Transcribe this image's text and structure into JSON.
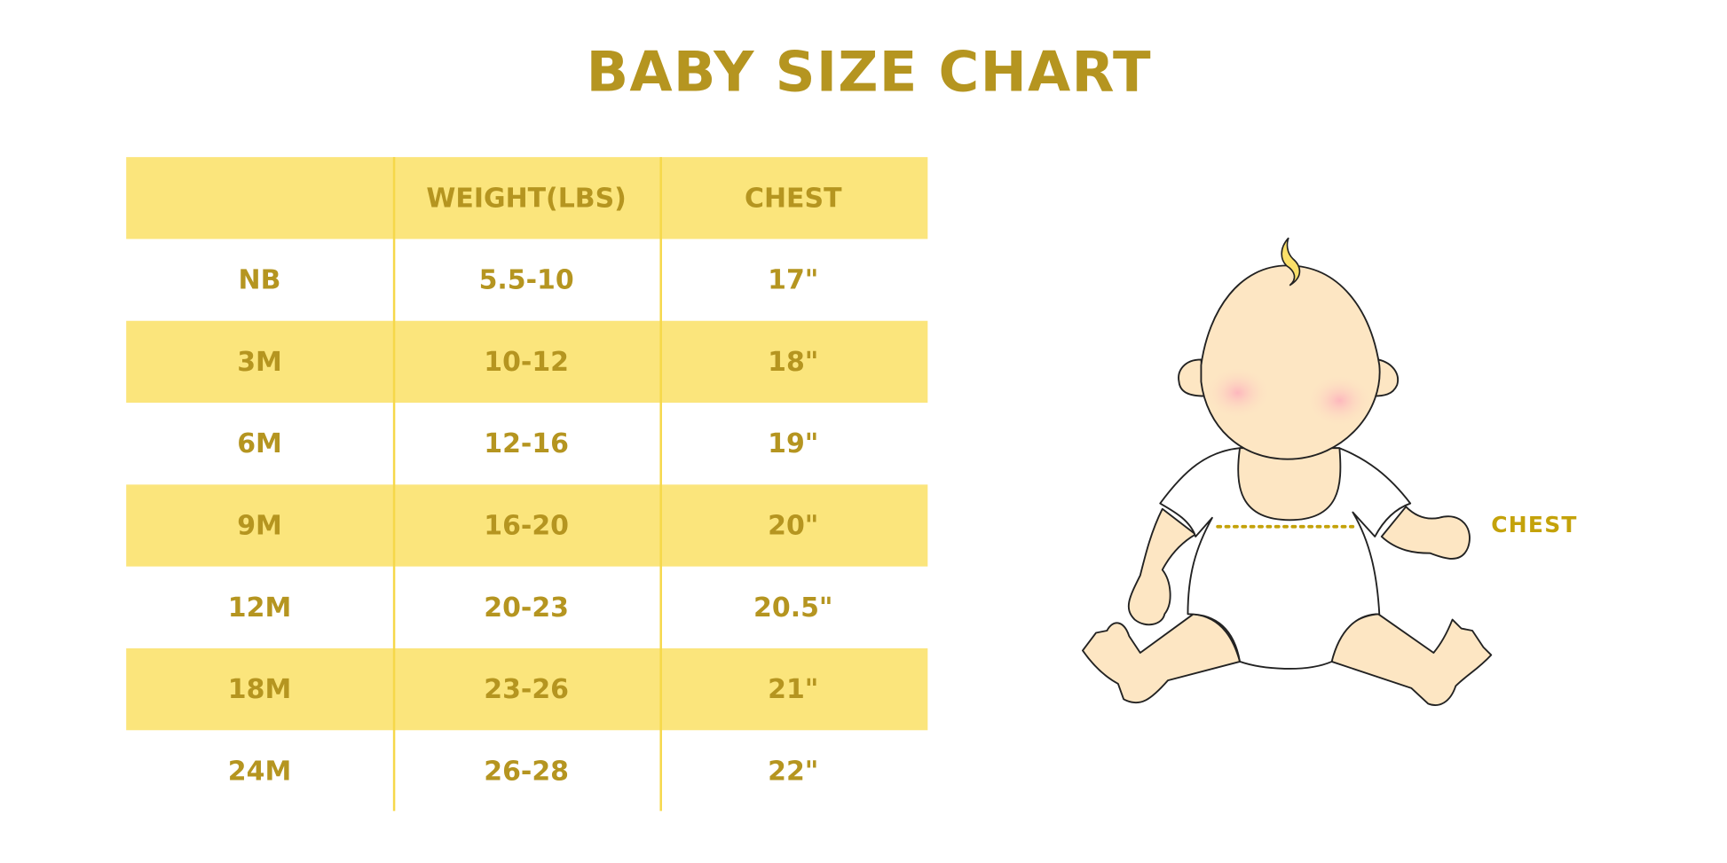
{
  "title": "BABY SIZE CHART",
  "table": {
    "headers": [
      "",
      "WEIGHT(LBS)",
      "CHEST"
    ],
    "rows": [
      [
        "NB",
        "5.5-10",
        "17\""
      ],
      [
        "3M",
        "10-12",
        "18\""
      ],
      [
        "6M",
        "12-16",
        "19\""
      ],
      [
        "9M",
        "16-20",
        "20\""
      ],
      [
        "12M",
        "20-23",
        "20.5\""
      ],
      [
        "18M",
        "23-26",
        "21\""
      ],
      [
        "24M",
        "26-28",
        "22\""
      ]
    ]
  },
  "illustration": {
    "chest_label": "CHEST"
  },
  "colors": {
    "text": "#b59520",
    "band": "#fbe57c",
    "skin": "#fde6c3"
  }
}
